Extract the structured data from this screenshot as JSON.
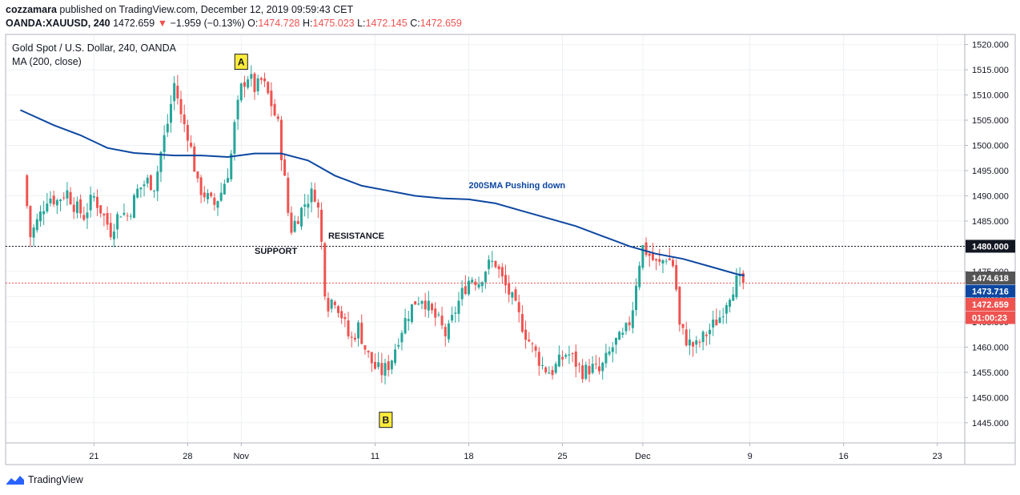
{
  "header": {
    "author": "cozzamara",
    "published_text": "published on TradingView.com, December 12, 2019 09:59:43 CET",
    "symbol": "OANDA:XAUUSD, 240",
    "last": "1472.659",
    "change": "−1.959 (−0.13%)",
    "o_label": "O:",
    "o_value": "1474.728",
    "h_label": "H:",
    "h_value": "1475.023",
    "l_label": "L:",
    "l_value": "1472.145",
    "c_label": "C:",
    "c_value": "1472.659"
  },
  "footer": {
    "brand": "TradingView"
  },
  "colors": {
    "up": "#26a69a",
    "down": "#ef5350",
    "ma": "#0d47a1",
    "grid": "#eef0f3"
  },
  "chart_data": {
    "type": "candlestick",
    "title": "Gold Spot / U.S. Dollar, 240, OANDA",
    "indicator": "MA (200, close)",
    "ylim": [
      1441,
      1522
    ],
    "y_ticks": [
      "1520.000",
      "1515.000",
      "1510.000",
      "1505.000",
      "1500.000",
      "1495.000",
      "1490.000",
      "1485.000",
      "1480.000",
      "1475.000",
      "1470.000",
      "1465.000",
      "1460.000",
      "1455.000",
      "1450.000",
      "1445.000"
    ],
    "x_ticks": [
      {
        "label": "21",
        "day": 21
      },
      {
        "label": "28",
        "day": 28
      },
      {
        "label": "Nov",
        "day": 32
      },
      {
        "label": "11",
        "day": 42
      },
      {
        "label": "18",
        "day": 49
      },
      {
        "label": "25",
        "day": 56
      },
      {
        "label": "Dec",
        "day": 62
      },
      {
        "label": "9",
        "day": 70
      },
      {
        "label": "16",
        "day": 77
      },
      {
        "label": "23",
        "day": 84
      }
    ],
    "day_offset_note": "days counted from Oct 0",
    "close_path": [
      [
        16.0,
        1494
      ],
      [
        16.5,
        1482
      ],
      [
        17.2,
        1486
      ],
      [
        17.8,
        1490
      ],
      [
        18.5,
        1489
      ],
      [
        19.2,
        1491
      ],
      [
        19.8,
        1488
      ],
      [
        20.5,
        1486
      ],
      [
        21.2,
        1490
      ],
      [
        21.8,
        1487
      ],
      [
        22.5,
        1483
      ],
      [
        23.2,
        1487
      ],
      [
        23.8,
        1486
      ],
      [
        24.5,
        1491
      ],
      [
        25.2,
        1493
      ],
      [
        25.8,
        1492
      ],
      [
        26.2,
        1498
      ],
      [
        26.8,
        1505
      ],
      [
        27.3,
        1513
      ],
      [
        27.7,
        1506
      ],
      [
        28.2,
        1503
      ],
      [
        28.6,
        1498
      ],
      [
        29.0,
        1492
      ],
      [
        29.6,
        1490
      ],
      [
        30.2,
        1488
      ],
      [
        30.8,
        1491
      ],
      [
        31.4,
        1496
      ],
      [
        31.8,
        1505
      ],
      [
        32.3,
        1512
      ],
      [
        32.8,
        1514
      ],
      [
        33.3,
        1511
      ],
      [
        33.8,
        1513
      ],
      [
        34.4,
        1509
      ],
      [
        35.0,
        1504
      ],
      [
        35.5,
        1493
      ],
      [
        35.9,
        1483
      ],
      [
        36.5,
        1486
      ],
      [
        37.1,
        1489
      ],
      [
        37.7,
        1491
      ],
      [
        38.1,
        1486
      ],
      [
        38.6,
        1468
      ],
      [
        39.2,
        1470
      ],
      [
        39.8,
        1466
      ],
      [
        40.4,
        1461
      ],
      [
        41.0,
        1464
      ],
      [
        41.6,
        1459
      ],
      [
        42.2,
        1456
      ],
      [
        42.8,
        1455
      ],
      [
        43.4,
        1457
      ],
      [
        44.0,
        1462
      ],
      [
        44.6,
        1466
      ],
      [
        45.2,
        1469
      ],
      [
        45.8,
        1470
      ],
      [
        46.4,
        1467
      ],
      [
        47.0,
        1465
      ],
      [
        47.6,
        1462
      ],
      [
        48.2,
        1467
      ],
      [
        48.8,
        1471
      ],
      [
        49.4,
        1474
      ],
      [
        50.0,
        1473
      ],
      [
        50.6,
        1476
      ],
      [
        51.2,
        1477
      ],
      [
        51.8,
        1473
      ],
      [
        52.4,
        1470
      ],
      [
        53.0,
        1466
      ],
      [
        53.6,
        1462
      ],
      [
        54.2,
        1459
      ],
      [
        54.8,
        1456
      ],
      [
        55.4,
        1455
      ],
      [
        56.0,
        1457
      ],
      [
        56.6,
        1459
      ],
      [
        57.2,
        1457
      ],
      [
        57.8,
        1455
      ],
      [
        58.4,
        1456
      ],
      [
        59.0,
        1455
      ],
      [
        59.6,
        1458
      ],
      [
        60.2,
        1461
      ],
      [
        60.8,
        1462
      ],
      [
        61.4,
        1466
      ],
      [
        61.8,
        1474
      ],
      [
        62.2,
        1480
      ],
      [
        62.8,
        1478
      ],
      [
        63.4,
        1476
      ],
      [
        64.0,
        1478
      ],
      [
        64.6,
        1476
      ],
      [
        65.0,
        1464
      ],
      [
        65.6,
        1461
      ],
      [
        66.2,
        1460
      ],
      [
        66.8,
        1462
      ],
      [
        67.4,
        1464
      ],
      [
        68.0,
        1466
      ],
      [
        68.6,
        1470
      ],
      [
        69.2,
        1473
      ],
      [
        69.6,
        1472.659
      ]
    ],
    "ma_path": [
      [
        15.5,
        1507
      ],
      [
        18,
        1504
      ],
      [
        20,
        1502
      ],
      [
        22,
        1499.5
      ],
      [
        24,
        1498.5
      ],
      [
        27,
        1498
      ],
      [
        29,
        1498
      ],
      [
        31,
        1497.7
      ],
      [
        33,
        1498.4
      ],
      [
        35,
        1498.4
      ],
      [
        37,
        1497
      ],
      [
        39,
        1494
      ],
      [
        41,
        1492
      ],
      [
        43,
        1491
      ],
      [
        45,
        1490
      ],
      [
        47,
        1489.5
      ],
      [
        49,
        1489.3
      ],
      [
        51,
        1488.5
      ],
      [
        53,
        1487
      ],
      [
        55,
        1485.5
      ],
      [
        57,
        1484
      ],
      [
        59,
        1482
      ],
      [
        61,
        1480
      ],
      [
        63,
        1478.5
      ],
      [
        65,
        1477.5
      ],
      [
        67,
        1476
      ],
      [
        69,
        1474.5
      ],
      [
        69.6,
        1474.2
      ]
    ],
    "annotations": [
      {
        "label": "A",
        "day": 32.0,
        "value": 1516.5
      },
      {
        "label": "B",
        "day": 42.8,
        "value": 1445.5
      }
    ],
    "text_labels": [
      {
        "text": "200SMA Pushing down",
        "day": 49.0,
        "value": 1491.5
      },
      {
        "text": "RESISTANCE",
        "day": 38.5,
        "value": 1481.5
      },
      {
        "text": "SUPPORT",
        "day": 33.0,
        "value": 1478.5
      }
    ],
    "resistance_level": 1480.0,
    "resistance_label": "1480.000",
    "current_price_line": 1472.7,
    "price_tags": [
      {
        "text": "1474.618",
        "value": 1474.618,
        "bg": "#555555"
      },
      {
        "text": "1473.716",
        "value": 1473.716,
        "bg": "#0d47a1"
      },
      {
        "text": "1472.659",
        "value": 1472.659,
        "bg": "#ef5350"
      },
      {
        "text": "01:00:23",
        "value": 1470.4,
        "bg": "#ef5350"
      }
    ]
  }
}
